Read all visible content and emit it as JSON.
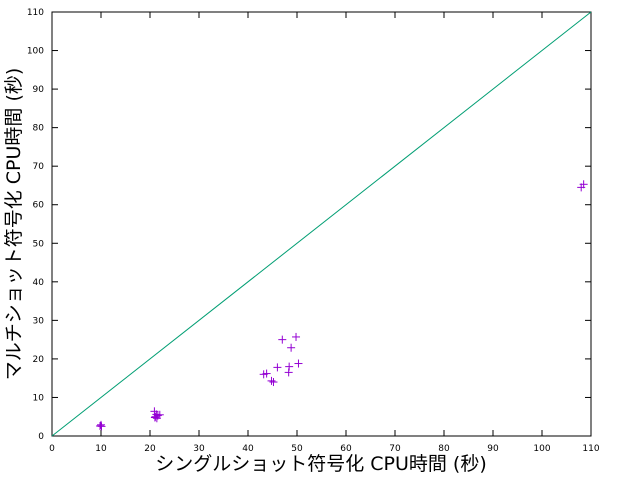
{
  "chart_data": {
    "type": "scatter",
    "xlabel": "シングルショット符号化 CPU時間 (秒)",
    "ylabel": "マルチショット符号化 CPU時間 (秒)",
    "xlim": [
      0,
      110
    ],
    "ylim": [
      0,
      110
    ],
    "xticks": [
      "0",
      "10",
      "20",
      "30",
      "40",
      "50",
      "60",
      "70",
      "80",
      "90",
      "100",
      "110"
    ],
    "yticks": [
      "0",
      "10",
      "20",
      "30",
      "40",
      "50",
      "60",
      "70",
      "80",
      "90",
      "100",
      "110"
    ],
    "grid": false,
    "reference_line": {
      "type": "y = x",
      "color": "#009e73"
    },
    "marker": "+",
    "marker_color": "#9400d3",
    "series": [
      {
        "points": [
          [
            9.8,
            2.6
          ],
          [
            10.0,
            2.9
          ],
          [
            10.1,
            2.5
          ],
          [
            20.9,
            6.4
          ],
          [
            21.0,
            4.8
          ],
          [
            21.3,
            5.6
          ],
          [
            21.1,
            5.0
          ],
          [
            21.6,
            5.3
          ],
          [
            22.0,
            5.5
          ],
          [
            21.4,
            4.6
          ],
          [
            43.2,
            16.0
          ],
          [
            43.8,
            16.2
          ],
          [
            44.8,
            14.3
          ],
          [
            45.2,
            14.0
          ],
          [
            46.0,
            17.8
          ],
          [
            47.0,
            25.0
          ],
          [
            48.3,
            16.5
          ],
          [
            48.4,
            18.0
          ],
          [
            48.8,
            22.9
          ],
          [
            49.8,
            25.7
          ],
          [
            50.3,
            18.8
          ],
          [
            108.0,
            64.5
          ],
          [
            108.5,
            65.3
          ]
        ]
      }
    ]
  }
}
